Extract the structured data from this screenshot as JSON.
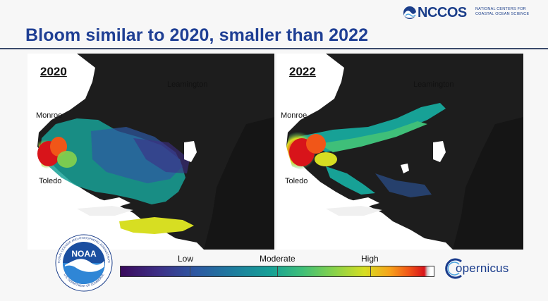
{
  "header": {
    "title": "Bloom similar to 2020, smaller than 2022",
    "logo_word": "NCCOS",
    "logo_tagline": "NATIONAL CENTERS FOR COASTAL OCEAN SCIENCE",
    "title_color": "#1f3f94"
  },
  "maps": [
    {
      "year": "2020",
      "places": {
        "north": "Leamington",
        "west": "Monroe",
        "south": "Toledo"
      }
    },
    {
      "year": "2022",
      "places": {
        "north": "Leamington",
        "west": "Monroe",
        "south": "Toledo"
      }
    }
  ],
  "legend": {
    "low": "Low",
    "moderate": "Moderate",
    "high": "High",
    "colors": [
      "#3a0a5c",
      "#2d58a2",
      "#17a196",
      "#86d24b",
      "#d7de22",
      "#f15618",
      "#d8141a"
    ]
  },
  "logos": {
    "noaa": "NOAA",
    "noaa_ring_top": "NATIONAL OCEANIC AND ATMOSPHERIC ADMINISTRATION",
    "noaa_ring_bottom": "U.S. DEPARTMENT OF COMMERCE",
    "copernicus": "opernicus"
  }
}
